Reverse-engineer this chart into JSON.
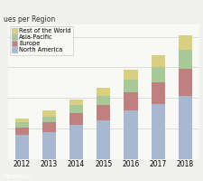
{
  "years": [
    "2012",
    "2013",
    "2014",
    "2015",
    "2016",
    "2017",
    "2018"
  ],
  "north_america": [
    2.0,
    2.2,
    2.8,
    3.2,
    4.0,
    4.5,
    5.2
  ],
  "europe": [
    0.6,
    0.8,
    1.0,
    1.2,
    1.5,
    1.8,
    2.2
  ],
  "asia_pacific": [
    0.4,
    0.5,
    0.6,
    0.8,
    1.0,
    1.2,
    1.5
  ],
  "rest_of_world": [
    0.3,
    0.5,
    0.5,
    0.6,
    0.8,
    1.0,
    1.2
  ],
  "color_north_america": "#a8b8d0",
  "color_europe": "#c08080",
  "color_asia_pacific": "#a8c898",
  "color_rest_of_world": "#d8d080",
  "title": "ues per Region",
  "legend_labels": [
    "Rest of the World",
    "Asia-Pacific",
    "Europe",
    "North America"
  ],
  "header_color": "#2b3d6b",
  "background_color": "#f0f0ee",
  "plot_bg": "#f8f8f6",
  "grid_color": "#d0d0d0",
  "footer_text": "Research",
  "title_fontsize": 5.5,
  "xlabel_fontsize": 5.5,
  "legend_fontsize": 4.8
}
